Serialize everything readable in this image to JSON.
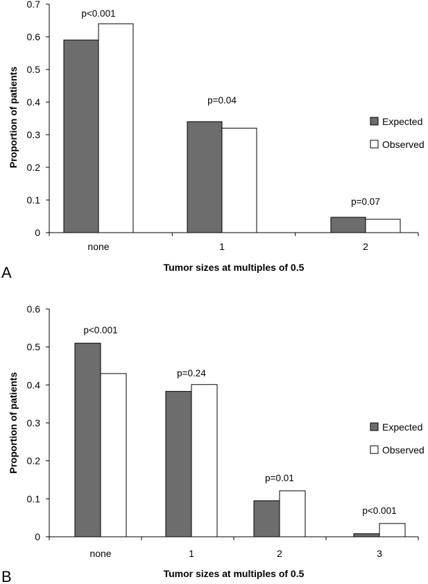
{
  "chart_data": [
    {
      "type": "bar",
      "panel_label": "A",
      "xlabel": "Tumor sizes at multiples of 0.5",
      "ylabel": "Proportion of patients",
      "ylim": [
        0,
        0.7
      ],
      "yticks": [
        "0",
        "0.1",
        "0.2",
        "0.3",
        "0.4",
        "0.5",
        "0.6",
        "0.7"
      ],
      "categories": [
        "none",
        "1",
        "2"
      ],
      "series": [
        {
          "name": "Expected",
          "values": [
            0.59,
            0.34,
            0.047
          ],
          "color": "#6d6d6d"
        },
        {
          "name": "Observed",
          "values": [
            0.64,
            0.32,
            0.041
          ],
          "color": "#ffffff"
        }
      ],
      "annotations": [
        "p<0.001",
        "p=0.04",
        "p=0.07"
      ],
      "legend_position": "right",
      "grid": false
    },
    {
      "type": "bar",
      "panel_label": "B",
      "xlabel": "Tumor sizes at multiples of 0.5",
      "ylabel": "Proportion of patients",
      "ylim": [
        0,
        0.6
      ],
      "yticks": [
        "0",
        "0.1",
        "0.2",
        "0.3",
        "0.4",
        "0.5",
        "0.6"
      ],
      "categories": [
        "none",
        "1",
        "2",
        "3"
      ],
      "series": [
        {
          "name": "Expected",
          "values": [
            0.51,
            0.383,
            0.095,
            0.008
          ],
          "color": "#6d6d6d"
        },
        {
          "name": "Observed",
          "values": [
            0.43,
            0.401,
            0.121,
            0.035
          ],
          "color": "#ffffff"
        }
      ],
      "annotations": [
        "p<0.001",
        "p=0.24",
        "p=0.01",
        "p<0.001"
      ],
      "legend_position": "right",
      "grid": false
    }
  ]
}
